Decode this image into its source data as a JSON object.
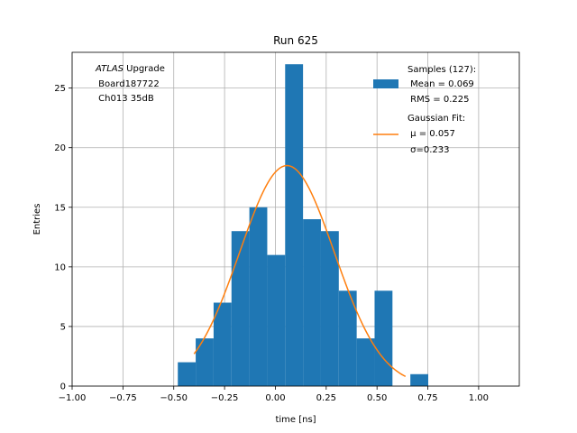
{
  "chart_data": {
    "type": "bar",
    "title": "Run 625",
    "xlabel": "time [ns]",
    "ylabel": "Entries",
    "xlim": [
      -1.0,
      1.2
    ],
    "ylim": [
      0,
      28
    ],
    "xticks": [
      -1.0,
      -0.75,
      -0.5,
      -0.25,
      0.0,
      0.25,
      0.5,
      0.75,
      1.0
    ],
    "xtick_labels": [
      "−1.00",
      "−0.75",
      "−0.50",
      "−0.25",
      "0.00",
      "0.25",
      "0.50",
      "0.75",
      "1.00"
    ],
    "yticks": [
      0,
      5,
      10,
      15,
      20,
      25
    ],
    "ytick_labels": [
      "0",
      "5",
      "10",
      "15",
      "20",
      "25"
    ],
    "grid": true,
    "histogram": {
      "bin_edges": [
        -0.48,
        -0.392,
        -0.304,
        -0.216,
        -0.128,
        -0.04,
        0.048,
        0.136,
        0.224,
        0.312,
        0.4,
        0.488,
        0.576,
        0.664,
        0.752
      ],
      "counts": [
        2,
        4,
        7,
        13,
        15,
        11,
        27,
        14,
        13,
        8,
        4,
        8,
        0,
        1
      ],
      "color": "#1f77b4"
    },
    "fit": {
      "type": "gaussian",
      "mu": 0.057,
      "sigma": 0.233,
      "amplitude": 18.5,
      "x_range": [
        -0.4,
        0.64
      ],
      "color": "#ff7f0e"
    },
    "annotation": {
      "italic": "ATLAS",
      "first_line_rest": " Upgrade",
      "lines": [
        " Board187722",
        " Ch013 35dB"
      ]
    },
    "legend": {
      "position": "top-right",
      "samples": [
        "Samples (127):",
        " Mean = 0.069",
        " RMS = 0.225"
      ],
      "fit": [
        "Gaussian Fit:",
        " μ = 0.057",
        " σ=0.233"
      ]
    }
  }
}
